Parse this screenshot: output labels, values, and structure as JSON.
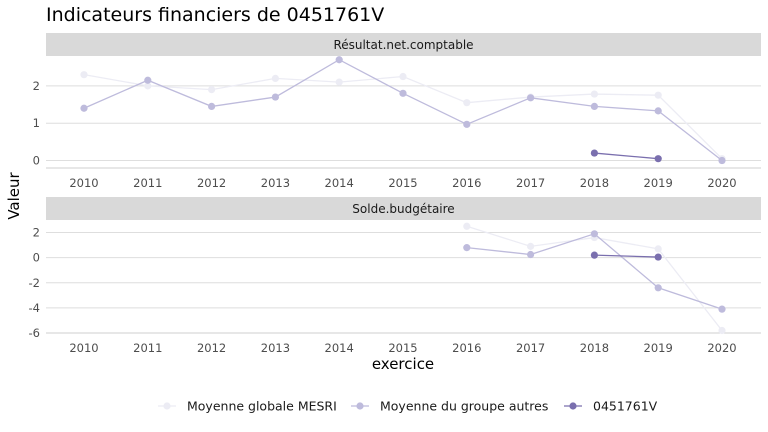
{
  "chart_data": {
    "type": "line",
    "title": "Indicateurs financiers de 0451761V",
    "xlabel": "exercice",
    "ylabel": "Valeur",
    "x": [
      "2010",
      "2011",
      "2012",
      "2013",
      "2014",
      "2015",
      "2016",
      "2017",
      "2018",
      "2019",
      "2020"
    ],
    "legend_position": "bottom",
    "grid": true,
    "colors": {
      "Moyenne globale MESRI": "#ececf4",
      "Moyenne du groupe autres": "#bebbdc",
      "0451761V": "#7a6fae"
    },
    "legend": [
      "Moyenne globale MESRI",
      "Moyenne du groupe autres",
      "0451761V"
    ],
    "panels": [
      {
        "strip": "Résultat.net.comptable",
        "ylim": [
          -0.2,
          2.8
        ],
        "yticks": [
          "0",
          "1",
          "2"
        ],
        "series": [
          {
            "name": "Moyenne globale MESRI",
            "values": [
              2.3,
              2.0,
              1.9,
              2.2,
              2.1,
              2.25,
              1.55,
              1.7,
              1.78,
              1.75,
              0.05
            ]
          },
          {
            "name": "Moyenne du groupe autres",
            "values": [
              1.4,
              2.15,
              1.45,
              1.7,
              2.7,
              1.8,
              0.97,
              1.68,
              1.45,
              1.33,
              0.0
            ]
          },
          {
            "name": "0451761V",
            "values": [
              null,
              null,
              null,
              null,
              null,
              null,
              null,
              null,
              0.2,
              0.05,
              null
            ]
          }
        ]
      },
      {
        "strip": "Solde.budgétaire",
        "ylim": [
          -6,
          3
        ],
        "yticks": [
          "-6",
          "-4",
          "-2",
          "0",
          "2"
        ],
        "series": [
          {
            "name": "Moyenne globale MESRI",
            "values": [
              null,
              null,
              null,
              null,
              null,
              null,
              2.5,
              0.9,
              1.6,
              0.7,
              -5.8
            ]
          },
          {
            "name": "Moyenne du groupe autres",
            "values": [
              null,
              null,
              null,
              null,
              null,
              null,
              0.8,
              0.25,
              1.9,
              -2.4,
              -4.1
            ]
          },
          {
            "name": "0451761V",
            "values": [
              null,
              null,
              null,
              null,
              null,
              null,
              null,
              null,
              0.2,
              0.05,
              null
            ]
          }
        ]
      }
    ]
  }
}
